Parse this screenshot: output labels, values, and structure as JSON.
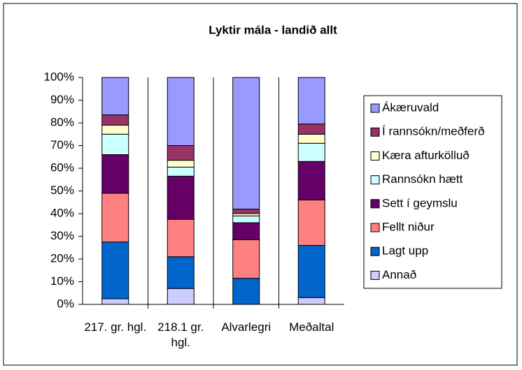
{
  "chart_data": {
    "type": "stacked_bar",
    "title": "Lyktir mála - landið allt",
    "categories": [
      "217. gr. hgl.",
      "218.1 gr. hgl.",
      "Alvarlegri",
      "Meðaltal"
    ],
    "series": [
      {
        "name": "Annað",
        "color": "#ccccff",
        "values": [
          2.5,
          7,
          0,
          3
        ]
      },
      {
        "name": "Lagt upp",
        "color": "#0066cc",
        "values": [
          25,
          14,
          11.5,
          23
        ]
      },
      {
        "name": "Fellt niður",
        "color": "#ff8080",
        "values": [
          21.5,
          16.5,
          17,
          20
        ]
      },
      {
        "name": "Sett í geymslu",
        "color": "#660066",
        "values": [
          17,
          19,
          7.5,
          17
        ]
      },
      {
        "name": "Rannsókn hætt",
        "color": "#ccffff",
        "values": [
          9,
          4,
          3,
          8
        ]
      },
      {
        "name": "Kæra afturkölluð",
        "color": "#ffffcc",
        "values": [
          4,
          3,
          1,
          4
        ]
      },
      {
        "name": "Í rannsókn/meðferð",
        "color": "#993366",
        "values": [
          4.5,
          6.5,
          2,
          4.5
        ]
      },
      {
        "name": "Ákæruvald",
        "color": "#9999ff",
        "values": [
          16.5,
          30,
          58,
          20.5
        ]
      }
    ],
    "ylim": [
      0,
      100
    ],
    "yticks": [
      {
        "value": 0,
        "label": "0%"
      },
      {
        "value": 10,
        "label": "10%"
      },
      {
        "value": 20,
        "label": "20%"
      },
      {
        "value": 30,
        "label": "30%"
      },
      {
        "value": 40,
        "label": "40%"
      },
      {
        "value": 50,
        "label": "50%"
      },
      {
        "value": 60,
        "label": "60%"
      },
      {
        "value": 70,
        "label": "70%"
      },
      {
        "value": 80,
        "label": "80%"
      },
      {
        "value": 90,
        "label": "90%"
      },
      {
        "value": 100,
        "label": "100%"
      }
    ],
    "legend": "right"
  }
}
